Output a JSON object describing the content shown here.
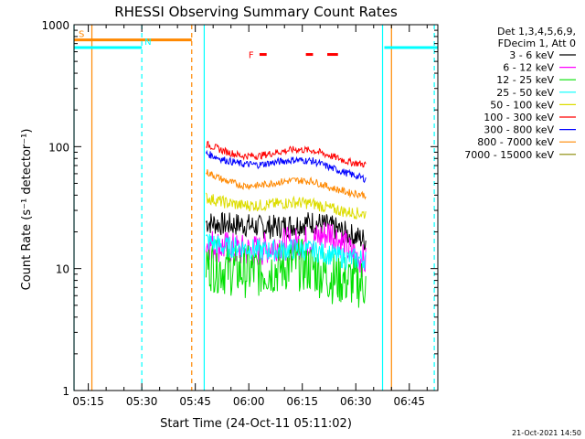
{
  "chart_data": {
    "type": "line",
    "title": "RHESSI Observing Summary Count Rates",
    "xlabel": "Start Time (24-Oct-11 05:11:02)",
    "ylabel": "Count Rate (s⁻¹ detector⁻¹)",
    "y_scale": "log",
    "ylim": [
      1,
      1000
    ],
    "xlim_minutes_after_05_11_02": [
      0,
      102
    ],
    "x_ticks": [
      {
        "label": "05:15",
        "t": 4
      },
      {
        "label": "05:30",
        "t": 19
      },
      {
        "label": "05:45",
        "t": 34
      },
      {
        "label": "06:00",
        "t": 49
      },
      {
        "label": "06:15",
        "t": 64
      },
      {
        "label": "06:30",
        "t": 79
      },
      {
        "label": "06:45",
        "t": 94
      }
    ],
    "y_ticks": [
      {
        "label": "1",
        "v": 1
      },
      {
        "label": "10",
        "v": 10
      },
      {
        "label": "100",
        "v": 100
      },
      {
        "label": "1000",
        "v": 1000
      }
    ],
    "legend_header": [
      "Det 1,3,4,5,6,9,",
      "FDecim 1, Att 0"
    ],
    "legend_position": "right",
    "series": [
      {
        "name": "3 - 6 keV",
        "color": "#000000",
        "x": [
          37,
          42,
          47,
          52,
          57,
          62,
          67,
          72,
          77,
          82
        ],
        "y": [
          24,
          23,
          23,
          22,
          22,
          23,
          24,
          22,
          19,
          17
        ]
      },
      {
        "name": "6 - 12 keV",
        "color": "#ff00ff",
        "x": [
          37,
          42,
          47,
          52,
          57,
          62,
          67,
          72,
          77,
          82
        ],
        "y": [
          16,
          15,
          14,
          14,
          16,
          16,
          17,
          20,
          14,
          11
        ]
      },
      {
        "name": "12 - 25 keV",
        "color": "#00e000",
        "x": [
          37,
          42,
          47,
          52,
          57,
          62,
          67,
          72,
          77,
          82
        ],
        "y": [
          11,
          10,
          9.5,
          9.5,
          10,
          11,
          10,
          8.5,
          8,
          7.5
        ]
      },
      {
        "name": "25 - 50 keV",
        "color": "#00ffff",
        "x": [
          37,
          42,
          47,
          52,
          57,
          62,
          67,
          72,
          77,
          82
        ],
        "y": [
          17,
          15,
          15,
          14,
          14,
          14.5,
          14,
          13,
          12,
          12
        ]
      },
      {
        "name": "50 - 100 keV",
        "color": "#dddd00",
        "x": [
          37,
          42,
          47,
          52,
          57,
          62,
          67,
          72,
          77,
          82
        ],
        "y": [
          38,
          35,
          33,
          33,
          34,
          35,
          34,
          31,
          29,
          28
        ]
      },
      {
        "name": "100 - 300 keV",
        "color": "#ff0000",
        "x": [
          37,
          42,
          47,
          52,
          57,
          62,
          67,
          72,
          77,
          82
        ],
        "y": [
          105,
          92,
          84,
          84,
          90,
          95,
          93,
          84,
          75,
          71
        ]
      },
      {
        "name": "300 - 800 keV",
        "color": "#0000ff",
        "x": [
          37,
          42,
          47,
          52,
          57,
          62,
          67,
          72,
          77,
          82
        ],
        "y": [
          88,
          78,
          72,
          71,
          75,
          78,
          76,
          67,
          60,
          54
        ]
      },
      {
        "name": "800 - 7000 keV",
        "color": "#ff8800",
        "x": [
          37,
          42,
          47,
          52,
          57,
          62,
          67,
          72,
          77,
          82
        ],
        "y": [
          62,
          53,
          48,
          48,
          51,
          53,
          52,
          46,
          42,
          40
        ]
      },
      {
        "name": "7000 - 15000 keV",
        "color": "#888800",
        "x": [],
        "y": []
      }
    ],
    "markers": [
      {
        "label": "S",
        "color": "#ff8800",
        "x_start": 0,
        "x_end": 33,
        "y": 750
      },
      {
        "label": "N",
        "color": "#00ffff",
        "x_start": 0,
        "x_end": 19,
        "y": 650
      },
      {
        "label": "",
        "color": "#00ffff",
        "x_start": 87,
        "x_end": 102,
        "y": 650
      },
      {
        "label": "F",
        "color": "#ff0000",
        "segments": [
          [
            52,
            54
          ],
          [
            65,
            67
          ],
          [
            71,
            74
          ]
        ],
        "y": 570
      }
    ],
    "vertical_lines": [
      {
        "x": 0,
        "color": "#00ffff",
        "style": "solid"
      },
      {
        "x": 5,
        "color": "#ff8800",
        "style": "solid"
      },
      {
        "x": 19,
        "color": "#00ffff",
        "style": "dashed"
      },
      {
        "x": 33,
        "color": "#ff8800",
        "style": "dashed"
      },
      {
        "x": 36.5,
        "color": "#00ffff",
        "style": "solid"
      },
      {
        "x": 86.5,
        "color": "#00ffff",
        "style": "solid"
      },
      {
        "x": 89,
        "color": "#ff8800",
        "style": "solid"
      },
      {
        "x": 101,
        "color": "#00ffff",
        "style": "dashed"
      }
    ]
  },
  "footer_timestamp": "21-Oct-2021 14:50"
}
